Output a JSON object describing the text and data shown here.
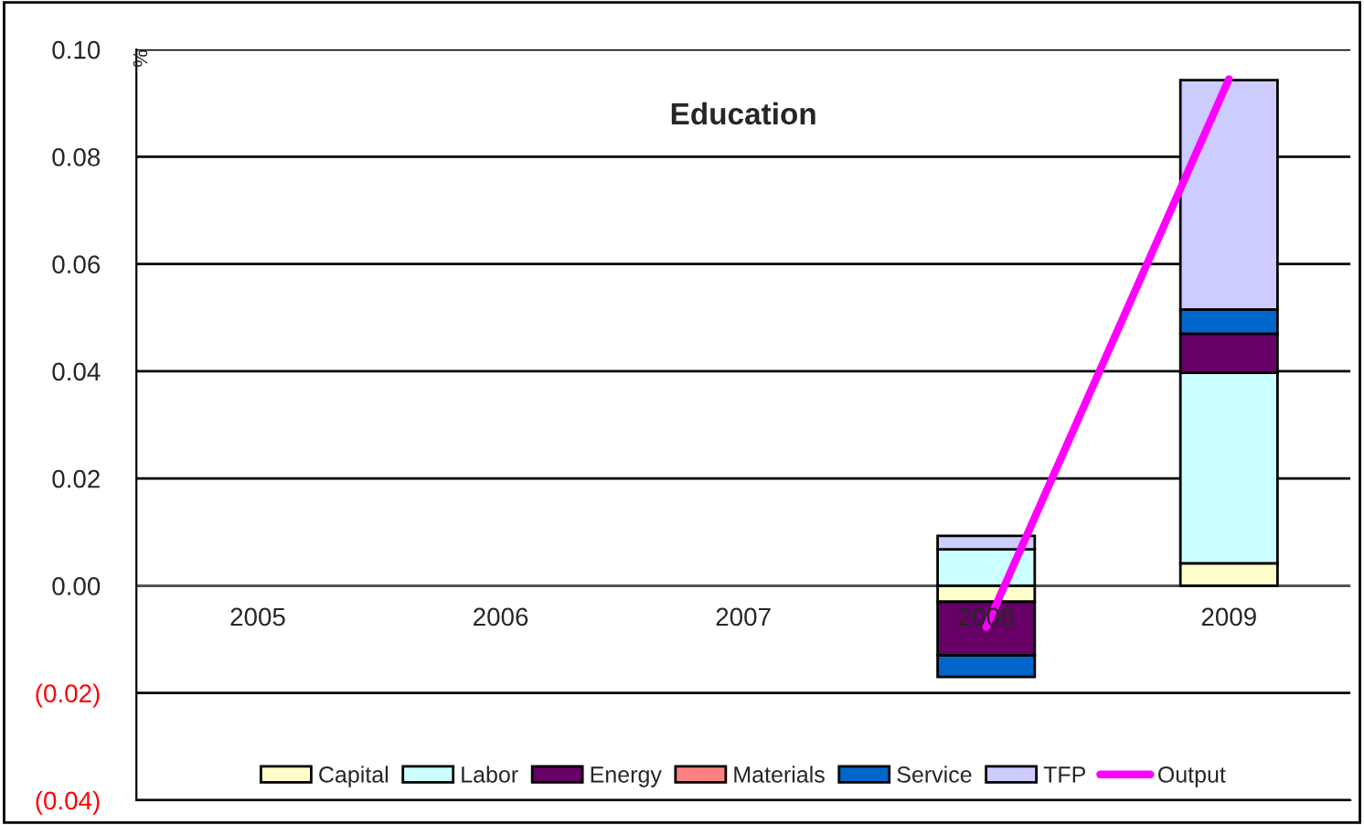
{
  "chart_data": {
    "type": "bar",
    "title": "Education",
    "ylabel": "%",
    "stacked": true,
    "categories": [
      "2005",
      "2006",
      "2007",
      "2008",
      "2009"
    ],
    "series": [
      {
        "name": "Capital",
        "color": "#ffffcc",
        "values": [
          null,
          null,
          null,
          -0.003,
          0.0042
        ]
      },
      {
        "name": "Labor",
        "color": "#ccffff",
        "values": [
          null,
          null,
          null,
          0.0068,
          0.0355
        ]
      },
      {
        "name": "Energy",
        "color": "#660066",
        "values": [
          null,
          null,
          null,
          -0.01,
          0.0073
        ]
      },
      {
        "name": "Materials",
        "color": "#ff8080",
        "values": [
          null,
          null,
          null,
          null,
          null
        ]
      },
      {
        "name": "Service",
        "color": "#0066cc",
        "values": [
          null,
          null,
          null,
          -0.004,
          0.0045
        ]
      },
      {
        "name": "TFP",
        "color": "#ccccff",
        "values": [
          null,
          null,
          null,
          0.0025,
          0.0428
        ]
      },
      {
        "name": "Output",
        "type": "line",
        "color": "#ff00ff",
        "values": [
          null,
          null,
          null,
          -0.0077,
          0.0945
        ]
      }
    ],
    "ylim": [
      -0.04,
      0.1
    ],
    "yticks": [
      {
        "value": -0.04,
        "label": "(0.04)"
      },
      {
        "value": -0.02,
        "label": "(0.02)"
      },
      {
        "value": 0,
        "label": "0.00"
      },
      {
        "value": 0.02,
        "label": "0.02"
      },
      {
        "value": 0.04,
        "label": "0.04"
      },
      {
        "value": 0.06,
        "label": "0.06"
      },
      {
        "value": 0.08,
        "label": "0.08"
      },
      {
        "value": 0.1,
        "label": "0.10"
      }
    ],
    "grid": "y",
    "legend": "bottom"
  }
}
